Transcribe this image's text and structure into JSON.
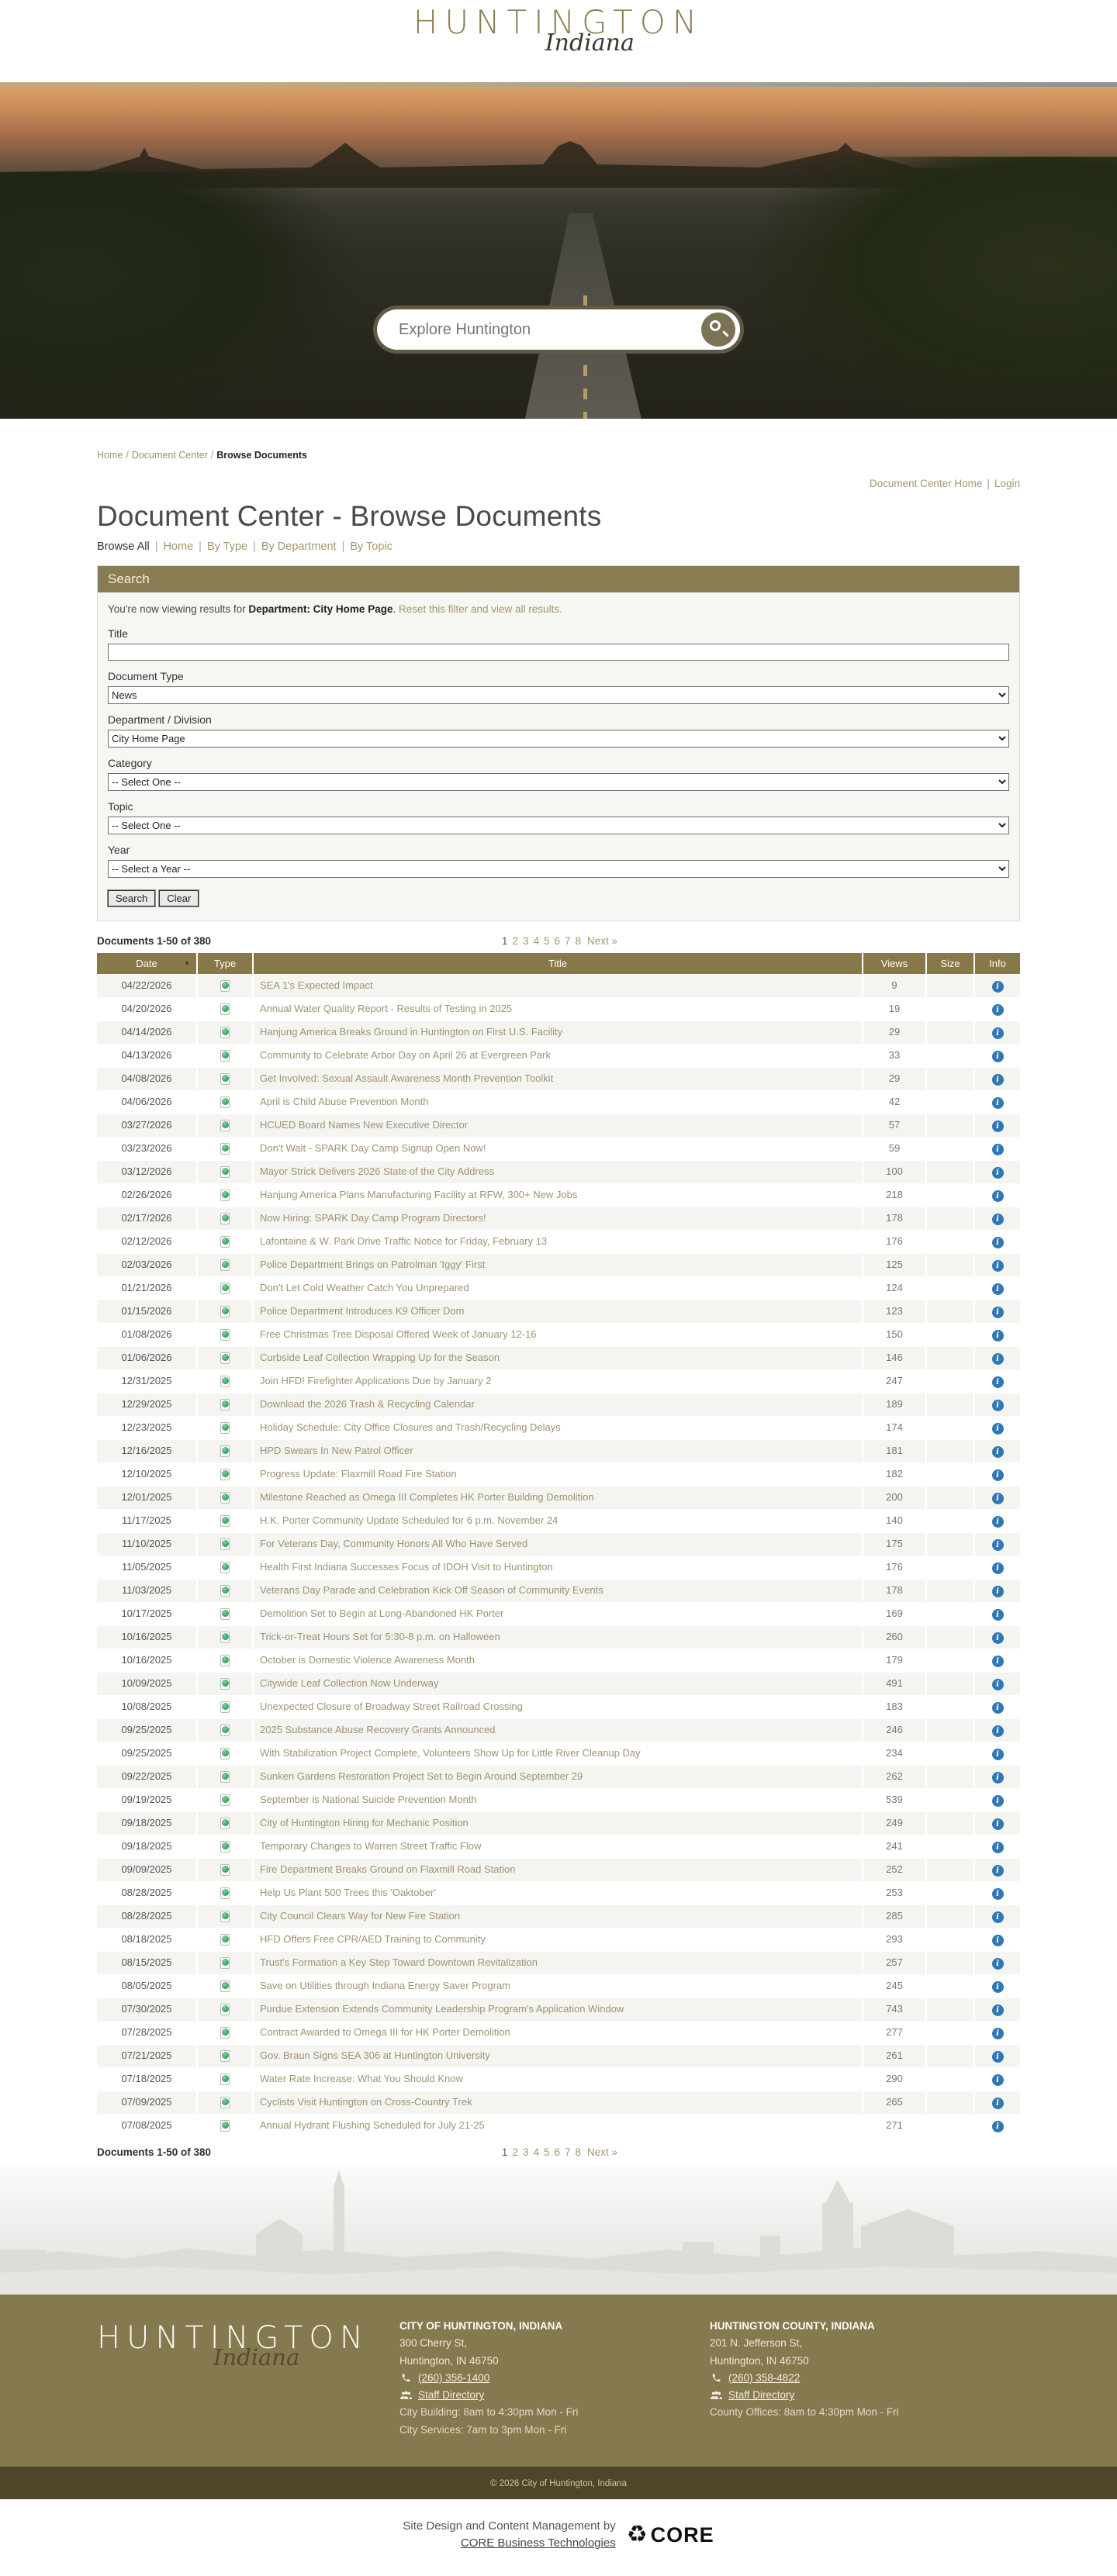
{
  "colors": {
    "accent_olive": "#8a7c52",
    "link_olive": "#a09273",
    "table_header": "#867849",
    "footer_bg": "#857950",
    "footer_dark": "#4e4629",
    "info_blue": "#2f77b5",
    "news_green": "#3fae6a"
  },
  "header": {
    "logo_main": "HUNTINGTON",
    "logo_sub": "Indiana"
  },
  "hero": {
    "search_placeholder": "Explore Huntington"
  },
  "breadcrumb": {
    "items": [
      "Home",
      "Document Center",
      "Browse Documents"
    ]
  },
  "dc_links": {
    "home": "Document Center Home",
    "login": "Login"
  },
  "page": {
    "title": "Document Center - Browse Documents"
  },
  "browse_nav": {
    "items": [
      "Browse All",
      "Home",
      "By Type",
      "By Department",
      "By Topic"
    ]
  },
  "search_panel": {
    "header": "Search",
    "notice_prefix": "You're now viewing results for ",
    "notice_bold": "Department: City Home Page",
    "notice_period": ". ",
    "notice_link": "Reset this filter and view all results.",
    "fields": [
      {
        "label": "Title",
        "control": "input",
        "value": ""
      },
      {
        "label": "Document Type",
        "control": "select",
        "value": "News"
      },
      {
        "label": "Department / Division",
        "control": "select",
        "value": "City Home Page"
      },
      {
        "label": "Category",
        "control": "select",
        "value": "-- Select One --"
      },
      {
        "label": "Topic",
        "control": "select",
        "value": "-- Select One --"
      },
      {
        "label": "Year",
        "control": "select",
        "value": "-- Select a Year --"
      }
    ],
    "search_button": "Search",
    "clear_button": "Clear"
  },
  "results": {
    "count_label": "Documents 1-50 of 380",
    "pagination": {
      "pages": [
        "1",
        "2",
        "3",
        "4",
        "5",
        "6",
        "7",
        "8"
      ],
      "current": "1",
      "next_label": "Next »"
    },
    "columns": [
      "Date",
      "Type",
      "Title",
      "Views",
      "Size",
      "Info"
    ],
    "type_icon": "news-document-icon",
    "info_icon": "info-icon",
    "rows": [
      {
        "date": "04/22/2026",
        "title": "SEA 1's Expected Impact",
        "views": "9"
      },
      {
        "date": "04/20/2026",
        "title": "Annual Water Quality Report - Results of Testing in 2025",
        "views": "19"
      },
      {
        "date": "04/14/2026",
        "title": "Hanjung America Breaks Ground in Huntington on First U.S. Facility",
        "views": "29"
      },
      {
        "date": "04/13/2026",
        "title": "Community to Celebrate Arbor Day on April 26 at Evergreen Park",
        "views": "33"
      },
      {
        "date": "04/08/2026",
        "title": "Get Involved: Sexual Assault Awareness Month Prevention Toolkit",
        "views": "29"
      },
      {
        "date": "04/06/2026",
        "title": "April is Child Abuse Prevention Month",
        "views": "42"
      },
      {
        "date": "03/27/2026",
        "title": "HCUED Board Names New Executive Director",
        "views": "57"
      },
      {
        "date": "03/23/2026",
        "title": "Don't Wait - SPARK Day Camp Signup Open Now!",
        "views": "59"
      },
      {
        "date": "03/12/2026",
        "title": "Mayor Strick Delivers 2026 State of the City Address",
        "views": "100"
      },
      {
        "date": "02/26/2026",
        "title": "Hanjung America Plans Manufacturing Facility at RFW, 300+ New Jobs",
        "views": "218"
      },
      {
        "date": "02/17/2026",
        "title": "Now Hiring: SPARK Day Camp Program Directors!",
        "views": "178"
      },
      {
        "date": "02/12/2026",
        "title": "Lafontaine & W. Park Drive Traffic Notice for Friday, February 13",
        "views": "176"
      },
      {
        "date": "02/03/2026",
        "title": "Police Department Brings on Patrolman 'Iggy' First",
        "views": "125"
      },
      {
        "date": "01/21/2026",
        "title": "Don't Let Cold Weather Catch You Unprepared",
        "views": "124"
      },
      {
        "date": "01/15/2026",
        "title": "Police Department Introduces K9 Officer Dom",
        "views": "123"
      },
      {
        "date": "01/08/2026",
        "title": "Free Christmas Tree Disposal Offered Week of January 12-16",
        "views": "150"
      },
      {
        "date": "01/06/2026",
        "title": "Curbside Leaf Collection Wrapping Up for the Season",
        "views": "146"
      },
      {
        "date": "12/31/2025",
        "title": "Join HFD! Firefighter Applications Due by January 2",
        "views": "247"
      },
      {
        "date": "12/29/2025",
        "title": "Download the 2026 Trash & Recycling Calendar",
        "views": "189"
      },
      {
        "date": "12/23/2025",
        "title": "Holiday Schedule: City Office Closures and Trash/Recycling Delays",
        "views": "174"
      },
      {
        "date": "12/16/2025",
        "title": "HPD Swears In New Patrol Officer",
        "views": "181"
      },
      {
        "date": "12/10/2025",
        "title": "Progress Update: Flaxmill Road Fire Station",
        "views": "182"
      },
      {
        "date": "12/01/2025",
        "title": "Milestone Reached as Omega III Completes HK Porter Building Demolition",
        "views": "200"
      },
      {
        "date": "11/17/2025",
        "title": "H.K. Porter Community Update Scheduled for 6 p.m. November 24",
        "views": "140"
      },
      {
        "date": "11/10/2025",
        "title": "For Veterans Day, Community Honors All Who Have Served",
        "views": "175"
      },
      {
        "date": "11/05/2025",
        "title": "Health First Indiana Successes Focus of IDOH Visit to Huntington",
        "views": "176"
      },
      {
        "date": "11/03/2025",
        "title": "Veterans Day Parade and Celebration Kick Off Season of Community Events",
        "views": "178"
      },
      {
        "date": "10/17/2025",
        "title": "Demolition Set to Begin at Long-Abandoned HK Porter",
        "views": "169"
      },
      {
        "date": "10/16/2025",
        "title": "Trick-or-Treat Hours Set for 5:30-8 p.m. on Halloween",
        "views": "260"
      },
      {
        "date": "10/16/2025",
        "title": "October is Domestic Violence Awareness Month",
        "views": "179"
      },
      {
        "date": "10/09/2025",
        "title": "Citywide Leaf Collection Now Underway",
        "views": "491"
      },
      {
        "date": "10/08/2025",
        "title": "Unexpected Closure of Broadway Street Railroad Crossing",
        "views": "183"
      },
      {
        "date": "09/25/2025",
        "title": "2025 Substance Abuse Recovery Grants Announced",
        "views": "246"
      },
      {
        "date": "09/25/2025",
        "title": "With Stabilization Project Complete, Volunteers Show Up for Little River Cleanup Day",
        "views": "234"
      },
      {
        "date": "09/22/2025",
        "title": "Sunken Gardens Restoration Project Set to Begin Around September 29",
        "views": "262"
      },
      {
        "date": "09/19/2025",
        "title": "September is National Suicide Prevention Month",
        "views": "539"
      },
      {
        "date": "09/18/2025",
        "title": "City of Huntington Hiring for Mechanic Position",
        "views": "249"
      },
      {
        "date": "09/18/2025",
        "title": "Temporary Changes to Warren Street Traffic Flow",
        "views": "241"
      },
      {
        "date": "09/09/2025",
        "title": "Fire Department Breaks Ground on Flaxmill Road Station",
        "views": "252"
      },
      {
        "date": "08/28/2025",
        "title": "Help Us Plant 500 Trees this 'Oaktober'",
        "views": "253"
      },
      {
        "date": "08/28/2025",
        "title": "City Council Clears Way for New Fire Station",
        "views": "285"
      },
      {
        "date": "08/18/2025",
        "title": "HFD Offers Free CPR/AED Training to Community",
        "views": "293"
      },
      {
        "date": "08/15/2025",
        "title": "Trust's Formation a Key Step Toward Downtown Revitalization",
        "views": "257"
      },
      {
        "date": "08/05/2025",
        "title": "Save on Utilities through Indiana Energy Saver Program",
        "views": "245"
      },
      {
        "date": "07/30/2025",
        "title": "Purdue Extension Extends Community Leadership Program's Application Window",
        "views": "743"
      },
      {
        "date": "07/28/2025",
        "title": "Contract Awarded to Omega III for HK Porter Demolition",
        "views": "277"
      },
      {
        "date": "07/21/2025",
        "title": "Gov. Braun Signs SEA 306 at Huntington University",
        "views": "261"
      },
      {
        "date": "07/18/2025",
        "title": "Water Rate Increase: What You Should Know",
        "views": "290"
      },
      {
        "date": "07/09/2025",
        "title": "Cyclists Visit Huntington on Cross-Country Trek",
        "views": "265"
      },
      {
        "date": "07/08/2025",
        "title": "Annual Hydrant Flushing Scheduled for July 21-25",
        "views": "271"
      }
    ]
  },
  "footer": {
    "logo_main": "HUNTINGTON",
    "logo_sub": "Indiana",
    "city": {
      "heading": "CITY OF HUNTINGTON, INDIANA",
      "address1": "300 Cherry St,",
      "address2": "Huntington, IN 46750",
      "phone": "(260) 356-1400",
      "staff_directory": "Staff Directory",
      "hours1": "City Building: 8am to 4:30pm Mon - Fri",
      "hours2": "City Services: 7am to 3pm Mon - Fri"
    },
    "county": {
      "heading": "HUNTINGTON COUNTY, INDIANA",
      "address1": "201 N. Jefferson St,",
      "address2": "Huntington, IN 46750",
      "phone": "(260) 358-4822",
      "staff_directory": "Staff Directory",
      "hours1": "County Offices: 8am to 4:30pm Mon - Fri"
    },
    "copyright": "© 2026 City of Huntington, Indiana"
  },
  "credits": {
    "line1": "Site Design and Content Management by",
    "link": "CORE Business Technologies",
    "brand": "CORE"
  }
}
